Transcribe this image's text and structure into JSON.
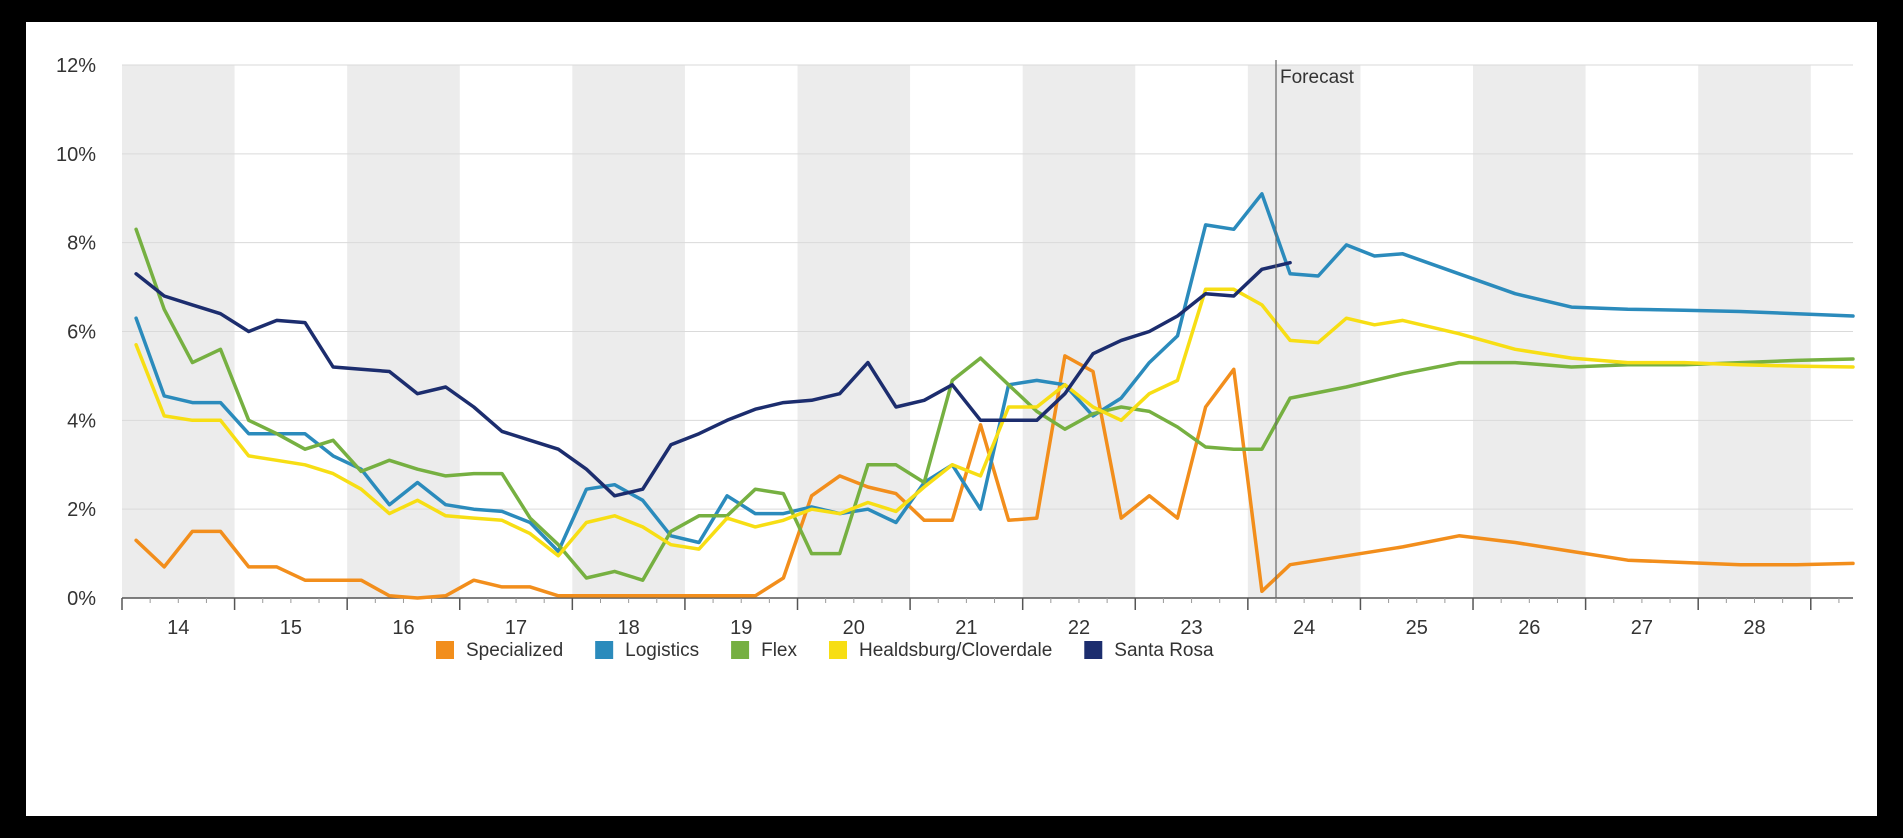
{
  "chart_data": {
    "type": "line",
    "title": "",
    "xlabel": "",
    "ylabel": "",
    "x_tick_labels": [
      "14",
      "15",
      "16",
      "17",
      "18",
      "19",
      "20",
      "21",
      "22",
      "23",
      "24",
      "25",
      "26",
      "27",
      "28"
    ],
    "y_tick_labels": [
      "0%",
      "2%",
      "4%",
      "6%",
      "8%",
      "10%",
      "12%"
    ],
    "ylim": [
      0,
      12
    ],
    "xlim": [
      13.5,
      28.875
    ],
    "grid": true,
    "legend_position": "bottom",
    "annotations": [
      {
        "label": "Forecast",
        "x": 23.75
      }
    ],
    "colors": {
      "Specialized": "#f28e1c",
      "Logistics": "#2b8bbc",
      "Flex": "#76b041",
      "Healdsburg/Cloverdale": "#f7de14",
      "Santa Rosa": "#1c2d6e"
    },
    "series": [
      {
        "name": "Specialized",
        "points": [
          [
            13.625,
            1.3
          ],
          [
            13.875,
            0.7
          ],
          [
            14.125,
            1.5
          ],
          [
            14.375,
            1.5
          ],
          [
            14.625,
            0.7
          ],
          [
            14.875,
            0.7
          ],
          [
            15.125,
            0.4
          ],
          [
            15.375,
            0.4
          ],
          [
            15.625,
            0.4
          ],
          [
            15.875,
            0.05
          ],
          [
            16.125,
            0.0
          ],
          [
            16.375,
            0.05
          ],
          [
            16.625,
            0.4
          ],
          [
            16.875,
            0.25
          ],
          [
            17.125,
            0.25
          ],
          [
            17.375,
            0.05
          ],
          [
            17.625,
            0.05
          ],
          [
            17.875,
            0.05
          ],
          [
            18.125,
            0.05
          ],
          [
            18.375,
            0.05
          ],
          [
            18.625,
            0.05
          ],
          [
            18.875,
            0.05
          ],
          [
            19.125,
            0.05
          ],
          [
            19.375,
            0.45
          ],
          [
            19.625,
            2.3
          ],
          [
            19.875,
            2.75
          ],
          [
            20.125,
            2.5
          ],
          [
            20.375,
            2.35
          ],
          [
            20.625,
            1.75
          ],
          [
            20.875,
            1.75
          ],
          [
            21.125,
            3.9
          ],
          [
            21.375,
            1.75
          ],
          [
            21.625,
            1.8
          ],
          [
            21.875,
            5.45
          ],
          [
            22.125,
            5.1
          ],
          [
            22.375,
            1.8
          ],
          [
            22.625,
            2.3
          ],
          [
            22.875,
            1.8
          ],
          [
            23.125,
            4.3
          ],
          [
            23.375,
            5.15
          ],
          [
            23.625,
            0.15
          ],
          [
            23.875,
            0.75
          ],
          [
            24.375,
            0.95
          ],
          [
            24.875,
            1.15
          ],
          [
            25.375,
            1.4
          ],
          [
            25.875,
            1.25
          ],
          [
            26.375,
            1.05
          ],
          [
            26.875,
            0.85
          ],
          [
            27.375,
            0.8
          ],
          [
            27.875,
            0.75
          ],
          [
            28.375,
            0.75
          ],
          [
            28.875,
            0.78
          ]
        ]
      },
      {
        "name": "Logistics",
        "points": [
          [
            13.625,
            6.3
          ],
          [
            13.875,
            4.55
          ],
          [
            14.125,
            4.4
          ],
          [
            14.375,
            4.4
          ],
          [
            14.625,
            3.7
          ],
          [
            14.875,
            3.7
          ],
          [
            15.125,
            3.7
          ],
          [
            15.375,
            3.2
          ],
          [
            15.625,
            2.9
          ],
          [
            15.875,
            2.1
          ],
          [
            16.125,
            2.6
          ],
          [
            16.375,
            2.1
          ],
          [
            16.625,
            2.0
          ],
          [
            16.875,
            1.95
          ],
          [
            17.125,
            1.7
          ],
          [
            17.375,
            1.05
          ],
          [
            17.625,
            2.45
          ],
          [
            17.875,
            2.55
          ],
          [
            18.125,
            2.2
          ],
          [
            18.375,
            1.4
          ],
          [
            18.625,
            1.25
          ],
          [
            18.875,
            2.3
          ],
          [
            19.125,
            1.9
          ],
          [
            19.375,
            1.9
          ],
          [
            19.625,
            2.05
          ],
          [
            19.875,
            1.9
          ],
          [
            20.125,
            2.0
          ],
          [
            20.375,
            1.7
          ],
          [
            20.625,
            2.6
          ],
          [
            20.875,
            3.0
          ],
          [
            21.125,
            2.0
          ],
          [
            21.375,
            4.8
          ],
          [
            21.625,
            4.9
          ],
          [
            21.875,
            4.8
          ],
          [
            22.125,
            4.1
          ],
          [
            22.375,
            4.5
          ],
          [
            22.625,
            5.3
          ],
          [
            22.875,
            5.9
          ],
          [
            23.125,
            8.4
          ],
          [
            23.375,
            8.3
          ],
          [
            23.625,
            9.1
          ],
          [
            23.875,
            7.3
          ],
          [
            24.125,
            7.25
          ],
          [
            24.375,
            7.95
          ],
          [
            24.625,
            7.7
          ],
          [
            24.875,
            7.75
          ],
          [
            25.375,
            7.3
          ],
          [
            25.875,
            6.85
          ],
          [
            26.375,
            6.55
          ],
          [
            26.875,
            6.5
          ],
          [
            27.375,
            6.48
          ],
          [
            27.875,
            6.45
          ],
          [
            28.375,
            6.4
          ],
          [
            28.875,
            6.35
          ]
        ]
      },
      {
        "name": "Flex",
        "points": [
          [
            13.625,
            8.3
          ],
          [
            13.875,
            6.5
          ],
          [
            14.125,
            5.3
          ],
          [
            14.375,
            5.6
          ],
          [
            14.625,
            4.0
          ],
          [
            14.875,
            3.7
          ],
          [
            15.125,
            3.35
          ],
          [
            15.375,
            3.55
          ],
          [
            15.625,
            2.85
          ],
          [
            15.875,
            3.1
          ],
          [
            16.125,
            2.9
          ],
          [
            16.375,
            2.75
          ],
          [
            16.625,
            2.8
          ],
          [
            16.875,
            2.8
          ],
          [
            17.125,
            1.8
          ],
          [
            17.375,
            1.2
          ],
          [
            17.625,
            0.45
          ],
          [
            17.875,
            0.6
          ],
          [
            18.125,
            0.4
          ],
          [
            18.375,
            1.5
          ],
          [
            18.625,
            1.85
          ],
          [
            18.875,
            1.85
          ],
          [
            19.125,
            2.45
          ],
          [
            19.375,
            2.35
          ],
          [
            19.625,
            1.0
          ],
          [
            19.875,
            1.0
          ],
          [
            20.125,
            3.0
          ],
          [
            20.375,
            3.0
          ],
          [
            20.625,
            2.6
          ],
          [
            20.875,
            4.9
          ],
          [
            21.125,
            5.4
          ],
          [
            21.375,
            4.8
          ],
          [
            21.625,
            4.2
          ],
          [
            21.875,
            3.8
          ],
          [
            22.125,
            4.15
          ],
          [
            22.375,
            4.3
          ],
          [
            22.625,
            4.2
          ],
          [
            22.875,
            3.85
          ],
          [
            23.125,
            3.4
          ],
          [
            23.375,
            3.35
          ],
          [
            23.625,
            3.35
          ],
          [
            23.875,
            4.5
          ],
          [
            24.375,
            4.75
          ],
          [
            24.875,
            5.05
          ],
          [
            25.375,
            5.3
          ],
          [
            25.875,
            5.3
          ],
          [
            26.375,
            5.2
          ],
          [
            26.875,
            5.25
          ],
          [
            27.375,
            5.25
          ],
          [
            27.875,
            5.3
          ],
          [
            28.375,
            5.35
          ],
          [
            28.875,
            5.38
          ]
        ]
      },
      {
        "name": "Healdsburg/Cloverdale",
        "points": [
          [
            13.625,
            5.7
          ],
          [
            13.875,
            4.1
          ],
          [
            14.125,
            4.0
          ],
          [
            14.375,
            4.0
          ],
          [
            14.625,
            3.2
          ],
          [
            14.875,
            3.1
          ],
          [
            15.125,
            3.0
          ],
          [
            15.375,
            2.8
          ],
          [
            15.625,
            2.45
          ],
          [
            15.875,
            1.9
          ],
          [
            16.125,
            2.2
          ],
          [
            16.375,
            1.85
          ],
          [
            16.625,
            1.8
          ],
          [
            16.875,
            1.75
          ],
          [
            17.125,
            1.45
          ],
          [
            17.375,
            0.95
          ],
          [
            17.625,
            1.7
          ],
          [
            17.875,
            1.85
          ],
          [
            18.125,
            1.6
          ],
          [
            18.375,
            1.2
          ],
          [
            18.625,
            1.1
          ],
          [
            18.875,
            1.8
          ],
          [
            19.125,
            1.6
          ],
          [
            19.375,
            1.75
          ],
          [
            19.625,
            2.0
          ],
          [
            19.875,
            1.9
          ],
          [
            20.125,
            2.15
          ],
          [
            20.375,
            1.95
          ],
          [
            20.625,
            2.5
          ],
          [
            20.875,
            3.0
          ],
          [
            21.125,
            2.75
          ],
          [
            21.375,
            4.3
          ],
          [
            21.625,
            4.3
          ],
          [
            21.875,
            4.8
          ],
          [
            22.125,
            4.3
          ],
          [
            22.375,
            4.0
          ],
          [
            22.625,
            4.6
          ],
          [
            22.875,
            4.9
          ],
          [
            23.125,
            6.95
          ],
          [
            23.375,
            6.95
          ],
          [
            23.625,
            6.6
          ],
          [
            23.875,
            5.8
          ],
          [
            24.125,
            5.75
          ],
          [
            24.375,
            6.3
          ],
          [
            24.625,
            6.15
          ],
          [
            24.875,
            6.25
          ],
          [
            25.375,
            5.95
          ],
          [
            25.875,
            5.6
          ],
          [
            26.375,
            5.4
          ],
          [
            26.875,
            5.3
          ],
          [
            27.375,
            5.3
          ],
          [
            27.875,
            5.25
          ],
          [
            28.375,
            5.22
          ],
          [
            28.875,
            5.2
          ]
        ]
      },
      {
        "name": "Santa Rosa",
        "points": [
          [
            13.625,
            7.3
          ],
          [
            13.875,
            6.8
          ],
          [
            14.125,
            6.6
          ],
          [
            14.375,
            6.4
          ],
          [
            14.625,
            6.0
          ],
          [
            14.875,
            6.25
          ],
          [
            15.125,
            6.2
          ],
          [
            15.375,
            5.2
          ],
          [
            15.625,
            5.15
          ],
          [
            15.875,
            5.1
          ],
          [
            16.125,
            4.6
          ],
          [
            16.375,
            4.75
          ],
          [
            16.625,
            4.3
          ],
          [
            16.875,
            3.75
          ],
          [
            17.125,
            3.55
          ],
          [
            17.375,
            3.35
          ],
          [
            17.625,
            2.9
          ],
          [
            17.875,
            2.3
          ],
          [
            18.125,
            2.45
          ],
          [
            18.375,
            3.45
          ],
          [
            18.625,
            3.7
          ],
          [
            18.875,
            4.0
          ],
          [
            19.125,
            4.25
          ],
          [
            19.375,
            4.4
          ],
          [
            19.625,
            4.45
          ],
          [
            19.875,
            4.6
          ],
          [
            20.125,
            5.3
          ],
          [
            20.375,
            4.3
          ],
          [
            20.625,
            4.45
          ],
          [
            20.875,
            4.8
          ],
          [
            21.125,
            4.0
          ],
          [
            21.375,
            4.0
          ],
          [
            21.625,
            4.0
          ],
          [
            21.875,
            4.6
          ],
          [
            22.125,
            5.5
          ],
          [
            22.375,
            5.8
          ],
          [
            22.625,
            6.0
          ],
          [
            22.875,
            6.35
          ],
          [
            23.125,
            6.85
          ],
          [
            23.375,
            6.8
          ],
          [
            23.625,
            7.4
          ],
          [
            23.875,
            7.55
          ]
        ]
      }
    ]
  }
}
